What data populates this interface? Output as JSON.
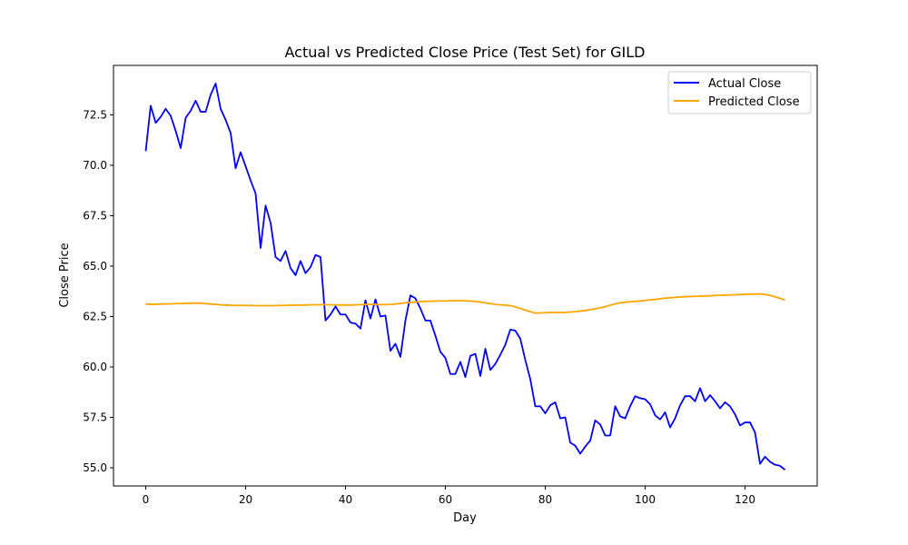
{
  "chart_data": {
    "type": "line",
    "title": "Actual vs Predicted Close Price (Test Set) for GILD",
    "xlabel": "Day",
    "ylabel": "Close Price",
    "xlim": [
      -6.45,
      134.45
    ],
    "ylim": [
      54.1,
      74.95
    ],
    "x_ticks": [
      0,
      20,
      40,
      60,
      80,
      100,
      120
    ],
    "x_tick_labels": [
      "0",
      "20",
      "40",
      "60",
      "80",
      "100",
      "120"
    ],
    "y_ticks": [
      55.0,
      57.5,
      60.0,
      62.5,
      65.0,
      67.5,
      70.0,
      72.5
    ],
    "y_tick_labels": [
      "55.0",
      "57.5",
      "60.0",
      "62.5",
      "65.0",
      "67.5",
      "70.0",
      "72.5"
    ],
    "grid": false,
    "legend_position": "top-right",
    "series": [
      {
        "name": "Actual Close",
        "color": "#0000ff",
        "values": [
          70.7,
          72.95,
          72.1,
          72.4,
          72.8,
          72.45,
          71.7,
          70.85,
          72.35,
          72.7,
          73.2,
          72.65,
          72.65,
          73.5,
          74.05,
          72.8,
          72.25,
          71.6,
          69.85,
          70.65,
          69.95,
          69.25,
          68.6,
          65.9,
          68.0,
          67.15,
          65.45,
          65.25,
          65.75,
          64.9,
          64.55,
          65.25,
          64.65,
          64.95,
          65.55,
          65.45,
          62.3,
          62.6,
          63.0,
          62.6,
          62.6,
          62.2,
          62.15,
          61.9,
          63.3,
          62.4,
          63.35,
          62.5,
          62.55,
          60.8,
          61.15,
          60.5,
          62.3,
          63.55,
          63.4,
          62.9,
          62.3,
          62.3,
          61.55,
          60.75,
          60.45,
          59.65,
          59.65,
          60.25,
          59.5,
          60.55,
          60.65,
          59.55,
          60.9,
          59.85,
          60.15,
          60.6,
          61.1,
          61.85,
          61.8,
          61.4,
          60.35,
          59.4,
          58.05,
          58.05,
          57.7,
          58.1,
          58.25,
          57.45,
          57.5,
          56.25,
          56.1,
          55.7,
          56.05,
          56.35,
          57.35,
          57.15,
          56.6,
          56.6,
          58.05,
          57.55,
          57.45,
          58.05,
          58.55,
          58.45,
          58.4,
          58.15,
          57.6,
          57.4,
          57.75,
          57.0,
          57.45,
          58.1,
          58.55,
          58.55,
          58.3,
          58.95,
          58.3,
          58.6,
          58.3,
          57.95,
          58.25,
          58.05,
          57.65,
          57.1,
          57.25,
          57.25,
          56.75,
          55.2,
          55.55,
          55.3,
          55.15,
          55.1,
          54.9
        ]
      },
      {
        "name": "Predicted Close",
        "color": "#ffa500",
        "values": [
          63.12,
          63.11,
          63.11,
          63.12,
          63.12,
          63.13,
          63.14,
          63.14,
          63.15,
          63.16,
          63.17,
          63.16,
          63.14,
          63.12,
          63.1,
          63.08,
          63.07,
          63.06,
          63.05,
          63.05,
          63.05,
          63.05,
          63.04,
          63.04,
          63.04,
          63.04,
          63.04,
          63.05,
          63.05,
          63.06,
          63.06,
          63.07,
          63.07,
          63.08,
          63.08,
          63.09,
          63.09,
          63.08,
          63.08,
          63.07,
          63.07,
          63.07,
          63.08,
          63.09,
          63.1,
          63.1,
          63.1,
          63.09,
          63.09,
          63.1,
          63.12,
          63.15,
          63.18,
          63.2,
          63.22,
          63.24,
          63.25,
          63.26,
          63.27,
          63.27,
          63.27,
          63.28,
          63.28,
          63.28,
          63.28,
          63.27,
          63.25,
          63.22,
          63.18,
          63.14,
          63.1,
          63.08,
          63.07,
          63.04,
          62.98,
          62.9,
          62.82,
          62.74,
          62.67,
          62.68,
          62.69,
          62.7,
          62.7,
          62.7,
          62.7,
          62.72,
          62.74,
          62.77,
          62.8,
          62.84,
          62.88,
          62.93,
          62.99,
          63.06,
          63.13,
          63.18,
          63.21,
          63.23,
          63.25,
          63.27,
          63.3,
          63.32,
          63.35,
          63.38,
          63.41,
          63.43,
          63.45,
          63.47,
          63.48,
          63.49,
          63.5,
          63.51,
          63.52,
          63.53,
          63.54,
          63.55,
          63.56,
          63.57,
          63.58,
          63.59,
          63.6,
          63.61,
          63.61,
          63.62,
          63.6,
          63.55,
          63.48,
          63.4,
          63.32
        ]
      }
    ]
  }
}
